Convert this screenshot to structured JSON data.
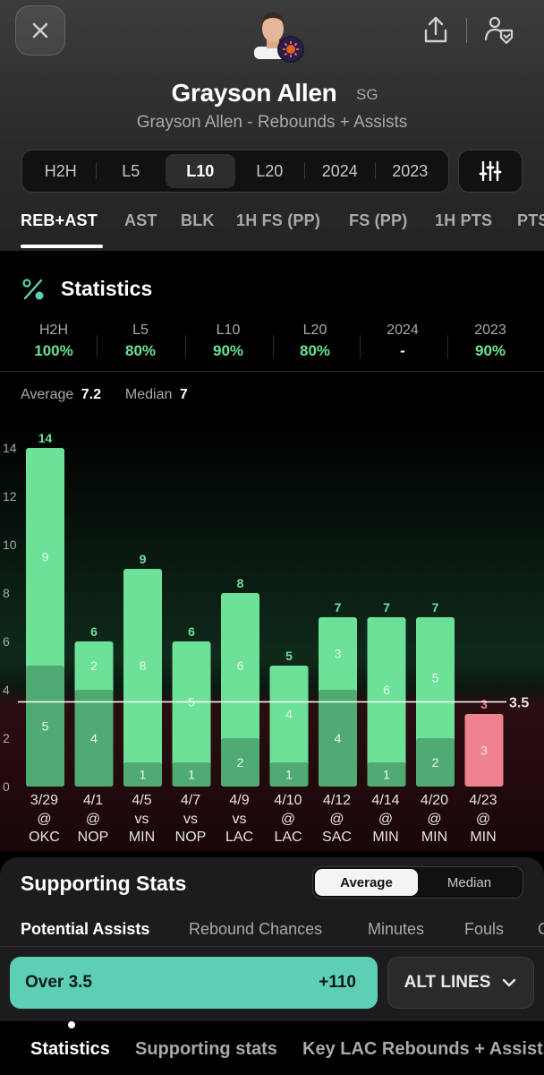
{
  "header": {
    "player_name": "Grayson Allen",
    "position": "SG",
    "subtitle": "Grayson Allen - Rebounds + Assists",
    "icons": {
      "close": "close-icon",
      "share": "share-icon",
      "follow": "follow-player-icon"
    }
  },
  "range_selector": {
    "options": [
      "H2H",
      "L5",
      "L10",
      "L20",
      "2024",
      "2023"
    ],
    "selected": "L10"
  },
  "stat_tabs": {
    "items": [
      "REB+AST",
      "AST",
      "BLK",
      "1H FS (PP)",
      "FS (PP)",
      "1H PTS",
      "PTS"
    ],
    "selected": "REB+AST"
  },
  "statistics": {
    "title": "Statistics",
    "hit_rates": [
      {
        "label": "H2H",
        "value": "100%"
      },
      {
        "label": "L5",
        "value": "80%"
      },
      {
        "label": "L10",
        "value": "90%"
      },
      {
        "label": "L20",
        "value": "80%"
      },
      {
        "label": "2024",
        "value": "-"
      },
      {
        "label": "2023",
        "value": "90%"
      }
    ],
    "average_label": "Average",
    "average_value": "7.2",
    "median_label": "Median",
    "median_value": "7"
  },
  "chart_data": {
    "type": "bar",
    "line_value": 3.5,
    "line_label": "3.5",
    "ylim": [
      0,
      14
    ],
    "yticks": [
      0,
      2,
      4,
      6,
      8,
      10,
      12,
      14
    ],
    "colors": {
      "over": "#6ce197",
      "over_bottom": "#4fab72",
      "under": "#f0828f",
      "label_over": "#6ce197",
      "label_under": "#f0828f"
    },
    "games": [
      {
        "date": "3/29",
        "venue": "@",
        "opp": "OKC",
        "total": 14,
        "bottom": 5,
        "top": 9
      },
      {
        "date": "4/1",
        "venue": "@",
        "opp": "NOP",
        "total": 6,
        "bottom": 4,
        "top": 2
      },
      {
        "date": "4/5",
        "venue": "vs",
        "opp": "MIN",
        "total": 9,
        "bottom": 1,
        "top": 8
      },
      {
        "date": "4/7",
        "venue": "vs",
        "opp": "NOP",
        "total": 6,
        "bottom": 1,
        "top": 5
      },
      {
        "date": "4/9",
        "venue": "vs",
        "opp": "LAC",
        "total": 8,
        "bottom": 2,
        "top": 6
      },
      {
        "date": "4/10",
        "venue": "@",
        "opp": "LAC",
        "total": 5,
        "bottom": 1,
        "top": 4
      },
      {
        "date": "4/12",
        "venue": "@",
        "opp": "SAC",
        "total": 7,
        "bottom": 4,
        "top": 3
      },
      {
        "date": "4/14",
        "venue": "@",
        "opp": "MIN",
        "total": 7,
        "bottom": 1,
        "top": 6
      },
      {
        "date": "4/20",
        "venue": "@",
        "opp": "MIN",
        "total": 7,
        "bottom": 2,
        "top": 5
      },
      {
        "date": "4/23",
        "venue": "@",
        "opp": "MIN",
        "total": 3,
        "bottom": 3,
        "top": 0
      }
    ]
  },
  "supporting": {
    "title": "Supporting Stats",
    "toggle": [
      "Average",
      "Median"
    ],
    "toggle_selected": "Average",
    "tabs": [
      "Potential Assists",
      "Rebound Chances",
      "Minutes",
      "Fouls",
      "G"
    ]
  },
  "bet": {
    "over_label": "Over 3.5",
    "over_odds": "+110",
    "alt_lines": "ALT LINES"
  },
  "bottom_nav": {
    "items": [
      "Statistics",
      "Supporting stats",
      "Key LAC Rebounds + Assists"
    ]
  }
}
